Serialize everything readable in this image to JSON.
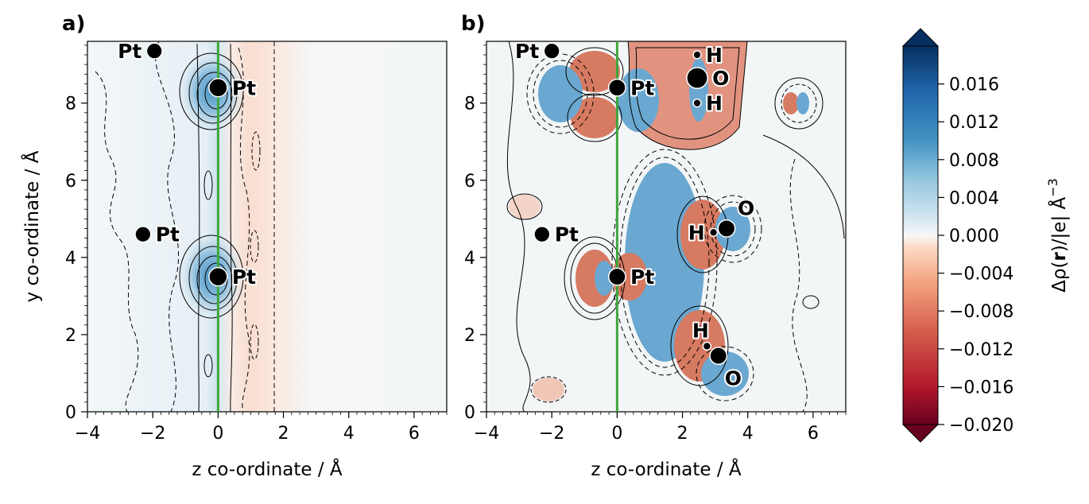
{
  "chart_data": [
    {
      "type": "heatmap",
      "panel_label": "a)",
      "xlabel": "z co-ordinate / Å",
      "ylabel": "y co-ordinate / Å",
      "xlim": [
        -4,
        7
      ],
      "ylim": [
        0,
        9.6
      ],
      "x_ticks": [
        "−4",
        "−2",
        "0",
        "2",
        "4",
        "6"
      ],
      "y_ticks": [
        "0",
        "2",
        "4",
        "6",
        "8"
      ],
      "vertical_line": {
        "z": 0,
        "color": "#3aa83a"
      },
      "atoms": [
        {
          "label": "Pt",
          "z": -1.95,
          "y": 9.35,
          "r": 0.24,
          "label_side": "left"
        },
        {
          "label": "Pt",
          "z": 0.0,
          "y": 8.4,
          "r": 0.28,
          "label_side": "right"
        },
        {
          "label": "Pt",
          "z": -2.3,
          "y": 4.6,
          "r": 0.24,
          "label_side": "right"
        },
        {
          "label": "Pt",
          "z": 0.0,
          "y": 3.5,
          "r": 0.28,
          "label_side": "right"
        }
      ]
    },
    {
      "type": "heatmap",
      "panel_label": "b)",
      "xlabel": "z co-ordinate / Å",
      "ylabel": "",
      "xlim": [
        -4,
        7
      ],
      "ylim": [
        0,
        9.6
      ],
      "x_ticks": [
        "−4",
        "−2",
        "0",
        "2",
        "4",
        "6"
      ],
      "y_ticks": [
        "0",
        "2",
        "4",
        "6",
        "8"
      ],
      "vertical_line": {
        "z": 0,
        "color": "#3aa83a"
      },
      "atoms": [
        {
          "label": "Pt",
          "z": -2.0,
          "y": 9.35,
          "r": 0.24,
          "label_side": "left"
        },
        {
          "label": "Pt",
          "z": 0.0,
          "y": 8.4,
          "r": 0.26,
          "label_side": "right"
        },
        {
          "label": "H",
          "z": 2.45,
          "y": 9.25,
          "r": 0.12,
          "label_side": "right"
        },
        {
          "label": "O",
          "z": 2.45,
          "y": 8.65,
          "r": 0.32,
          "label_side": "right"
        },
        {
          "label": "H",
          "z": 2.45,
          "y": 8.0,
          "r": 0.12,
          "label_side": "right"
        },
        {
          "label": "Pt",
          "z": -2.3,
          "y": 4.6,
          "r": 0.24,
          "label_side": "right"
        },
        {
          "label": "Pt",
          "z": 0.0,
          "y": 3.5,
          "r": 0.26,
          "label_side": "right"
        },
        {
          "label": "H",
          "z": 2.95,
          "y": 4.65,
          "r": 0.12,
          "label_side": "left"
        },
        {
          "label": "O",
          "z": 3.35,
          "y": 4.75,
          "r": 0.26,
          "label_side": "upright"
        },
        {
          "label": "H",
          "z": 2.75,
          "y": 1.7,
          "r": 0.12,
          "label_side": "up"
        },
        {
          "label": "O",
          "z": 3.1,
          "y": 1.45,
          "r": 0.26,
          "label_side": "downright"
        }
      ]
    }
  ],
  "colorbar": {
    "label_html": "Δρ(r)/|e| Å⁻³",
    "label_parts": [
      "Δρ(",
      "r",
      ")/|e| Å",
      "−3"
    ],
    "vmin": -0.02,
    "vmax": 0.02,
    "ticks": [
      "0.016",
      "0.012",
      "0.008",
      "0.004",
      "0.000",
      "−0.004",
      "−0.008",
      "−0.012",
      "−0.016",
      "−0.020"
    ],
    "colors": [
      "#67001f",
      "#b2182b",
      "#d6604d",
      "#f4a582",
      "#fddbc7",
      "#f7f7f7",
      "#d1e5f0",
      "#92c5de",
      "#4393c3",
      "#2166ac",
      "#053061"
    ],
    "extend": "both"
  }
}
